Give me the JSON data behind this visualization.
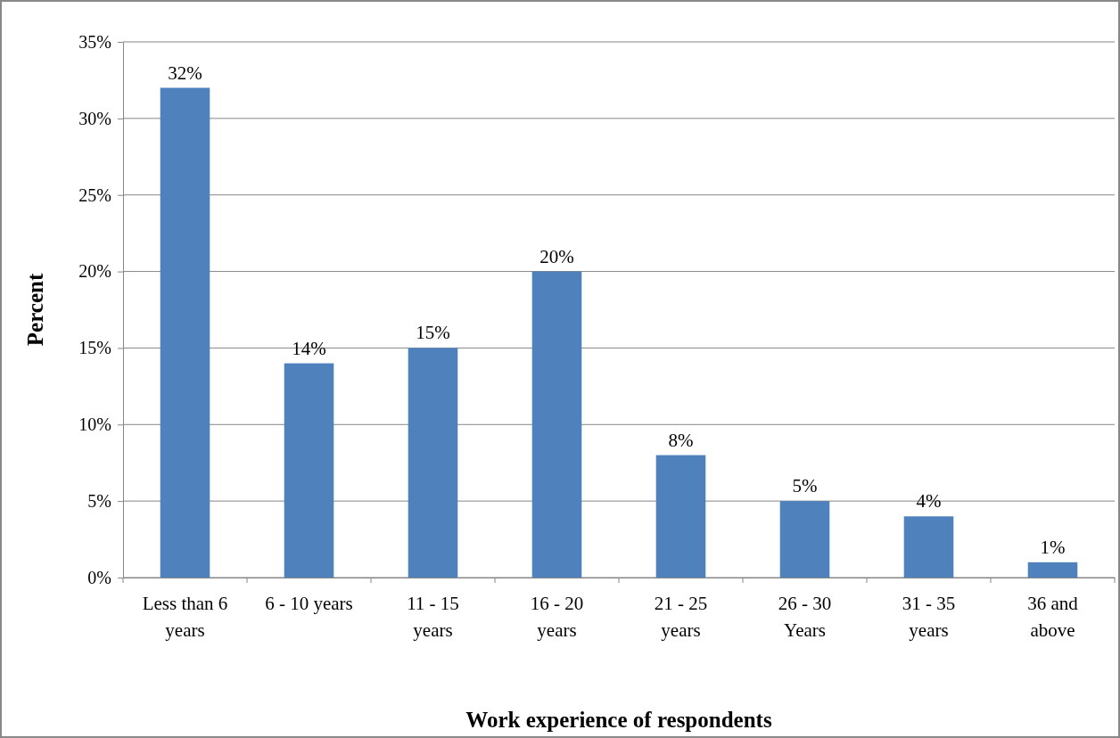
{
  "chart_data": {
    "type": "bar",
    "categories": [
      "Less than 6 years",
      "6 - 10 years",
      "11 - 15 years",
      "16 - 20 years",
      "21 - 25 years",
      "26 - 30 Years",
      "31 - 35 years",
      "36 and above"
    ],
    "values": [
      32,
      14,
      15,
      20,
      8,
      5,
      4,
      1
    ],
    "value_labels": [
      "32%",
      "14%",
      "15%",
      "20%",
      "8%",
      "5%",
      "4%",
      "1%"
    ],
    "color": "#4f81bd",
    "xlabel": "Work experience of respondents",
    "ylabel": "Percent",
    "ylim": [
      0,
      35
    ],
    "yticks": [
      {
        "value": 0,
        "label": "0%"
      },
      {
        "value": 5,
        "label": "5%"
      },
      {
        "value": 10,
        "label": "10%"
      },
      {
        "value": 15,
        "label": "15%"
      },
      {
        "value": 20,
        "label": "20%"
      },
      {
        "value": 25,
        "label": "25%"
      },
      {
        "value": 30,
        "label": "30%"
      },
      {
        "value": 35,
        "label": "35%"
      }
    ],
    "grid": "y"
  }
}
